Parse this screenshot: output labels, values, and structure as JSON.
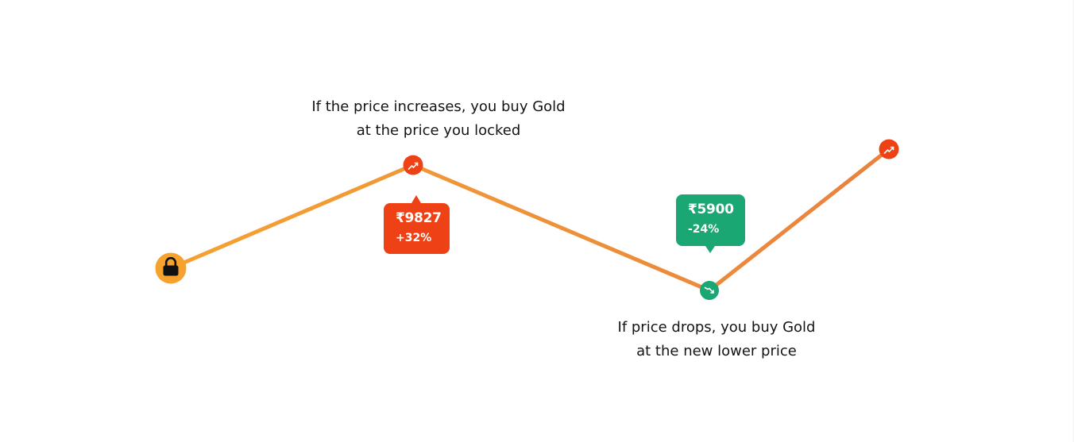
{
  "colors": {
    "line_start": "#f5a232",
    "line_end": "#e8823f",
    "rise": "#ee4116",
    "drop": "#1ba773",
    "lock": "#f7a12e"
  },
  "captions": {
    "price_increase": [
      "If the price increases, you buy Gold",
      "at the price you locked"
    ],
    "price_drop": [
      "If price drops, you buy Gold",
      "at the new lower price"
    ]
  },
  "tags": {
    "increase": {
      "price": "₹9827",
      "change": "+32%"
    },
    "drop": {
      "price": "₹5900",
      "change": "-24%"
    }
  },
  "markers": {
    "start_icon": "lock-icon",
    "increase_icon": "trending-up-icon",
    "drop_icon": "trending-down-icon",
    "end_icon": "trending-up-icon"
  }
}
